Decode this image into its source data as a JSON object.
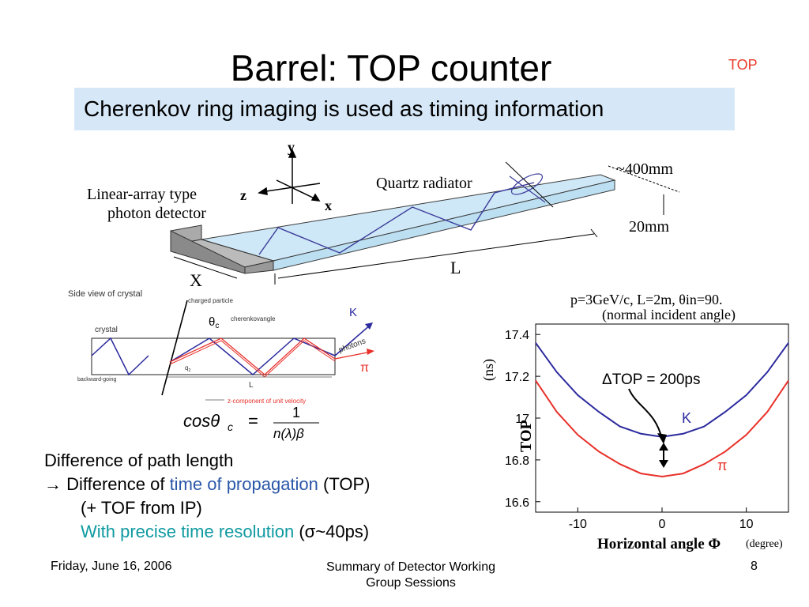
{
  "slide": {
    "title": "Barrel: TOP counter",
    "tag": "TOP",
    "subtitle": "Cherenkov ring imaging is used as timing information"
  },
  "diagram3d": {
    "detector_label_1": "Linear-array type",
    "detector_label_2": "photon detector",
    "radiator_label": "Quartz radiator",
    "width_label": "~400mm",
    "thickness_label": "20mm",
    "length_label": "L",
    "x_label": "X",
    "axis_y": "y",
    "axis_z": "z",
    "axis_x": "x"
  },
  "sideview": {
    "title": "Side view of crystal",
    "charged": "charged particle",
    "theta": "θ",
    "theta_sub": "c",
    "cherenkov": "cherenkovangle",
    "crystal": "crystal",
    "k": "K",
    "photons": "photons",
    "pi": "π",
    "qz": "q",
    "qz_sub": "z",
    "backward": "backward-going",
    "length": "L",
    "zcomp": "z-component of unit velocity",
    "formula_lhs": "cosθ",
    "formula_sub": "c",
    "formula_eq": "=",
    "formula_num": "1",
    "formula_den": "n(λ)β"
  },
  "plot_text": {
    "params_line1": "p=3GeV/c, L=2m, θin=90.",
    "params_line2": "(normal incident angle)",
    "delta_label": "ΔTOP  =  200ps",
    "degree": "(degree)",
    "ns": "(ns)"
  },
  "chart_data": {
    "type": "line",
    "title": "",
    "xlabel": "Horizontal angle Φ",
    "ylabel": "TOP",
    "xlim": [
      -15,
      15
    ],
    "ylim": [
      16.55,
      17.45
    ],
    "xticks": [
      -10,
      0,
      10
    ],
    "yticks": [
      16.6,
      16.8,
      17,
      17.2,
      17.4
    ],
    "x": [
      -15,
      -12.5,
      -10,
      -7.5,
      -5,
      -2.5,
      0,
      2.5,
      5,
      7.5,
      10,
      12.5,
      15
    ],
    "series": [
      {
        "name": "K",
        "color": "#2b2a9e",
        "values": [
          17.36,
          17.22,
          17.11,
          17.03,
          16.96,
          16.925,
          16.91,
          16.925,
          16.96,
          17.03,
          17.11,
          17.22,
          17.36
        ]
      },
      {
        "name": "π",
        "color": "#e8312a",
        "values": [
          17.18,
          17.03,
          16.92,
          16.84,
          16.78,
          16.735,
          16.72,
          16.735,
          16.78,
          16.84,
          16.92,
          17.03,
          17.18
        ]
      }
    ]
  },
  "bullets": {
    "line1": "Difference of path length",
    "line2_arrow": "→",
    "line2_a": " Difference of ",
    "line2_b": "time of propagation",
    "line2_c": " (TOP)",
    "line3": "(+ TOF from IP)",
    "line4_a": "With precise time resolution",
    "line4_b": " (",
    "line4_c": "σ",
    "line4_d": "~40ps)"
  },
  "footer": {
    "date": "Friday, June 16, 2006",
    "mid1": "Summary of Detector Working",
    "mid2": "Group  Sessions",
    "page": "8"
  },
  "colors": {
    "banner": "#d6e8f7",
    "tag": "#e83a2a",
    "blue": "#2a57a8",
    "teal": "#0f9aa0"
  }
}
